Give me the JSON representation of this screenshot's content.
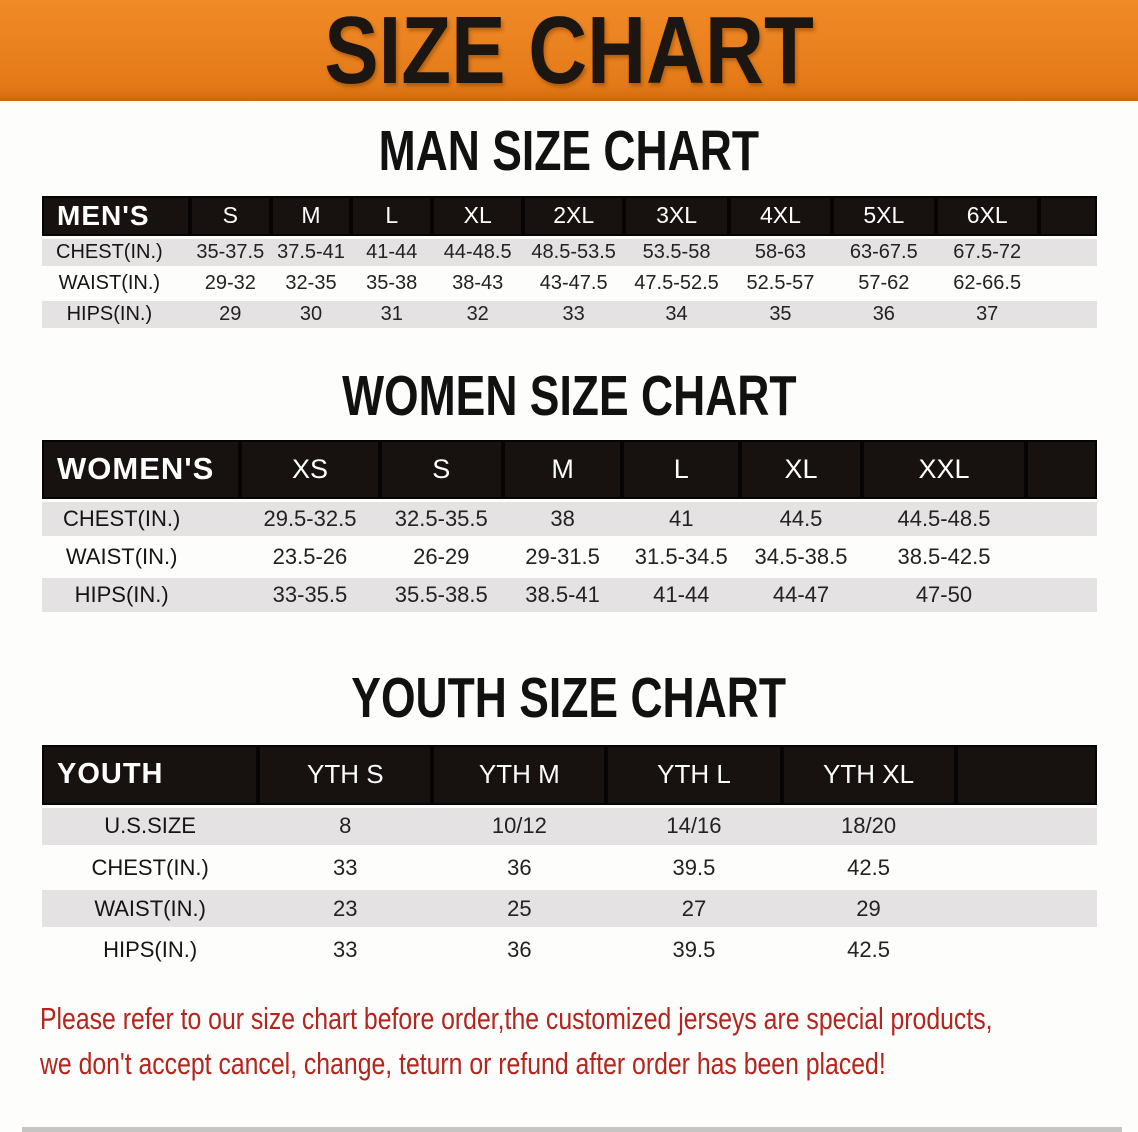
{
  "banner": {
    "title": "SIZE CHART"
  },
  "sections": [
    {
      "heading": "MAN SIZE CHART",
      "table": {
        "label": "MEN'S",
        "columns": [
          "S",
          "M",
          "L",
          "XL",
          "2XL",
          "3XL",
          "4XL",
          "5XL",
          "6XL"
        ],
        "rows": [
          {
            "label": "CHEST(IN.)",
            "values": [
              "35-37.5",
              "37.5-41",
              "41-44",
              "44-48.5",
              "48.5-53.5",
              "53.5-58",
              "58-63",
              "63-67.5",
              "67.5-72"
            ]
          },
          {
            "label": "WAIST(IN.)",
            "values": [
              "29-32",
              "32-35",
              "35-38",
              "38-43",
              "43-47.5",
              "47.5-52.5",
              "52.5-57",
              "57-62",
              "62-66.5"
            ]
          },
          {
            "label": "HIPS(IN.)",
            "values": [
              "29",
              "30",
              "31",
              "32",
              "33",
              "34",
              "35",
              "36",
              "37"
            ]
          }
        ]
      }
    },
    {
      "heading": "WOMEN SIZE CHART",
      "table": {
        "label": "WOMEN'S",
        "columns": [
          "XS",
          "S",
          "M",
          "L",
          "XL",
          "XXL"
        ],
        "rows": [
          {
            "label": "CHEST(IN.)",
            "values": [
              "29.5-32.5",
              "32.5-35.5",
              "38",
              "41",
              "44.5",
              "44.5-48.5"
            ]
          },
          {
            "label": "WAIST(IN.)",
            "values": [
              "23.5-26",
              "26-29",
              "29-31.5",
              "31.5-34.5",
              "34.5-38.5",
              "38.5-42.5"
            ]
          },
          {
            "label": "HIPS(IN.)",
            "values": [
              "33-35.5",
              "35.5-38.5",
              "38.5-41",
              "41-44",
              "44-47",
              "47-50"
            ]
          }
        ]
      }
    },
    {
      "heading": "YOUTH SIZE CHART",
      "table": {
        "label": "YOUTH",
        "columns": [
          "YTH S",
          "YTH M",
          "YTH L",
          "YTH XL"
        ],
        "rows": [
          {
            "label": "U.S.SIZE",
            "values": [
              "8",
              "10/12",
              "14/16",
              "18/20"
            ]
          },
          {
            "label": "CHEST(IN.)",
            "values": [
              "33",
              "36",
              "39.5",
              "42.5"
            ]
          },
          {
            "label": "WAIST(IN.)",
            "values": [
              "23",
              "25",
              "27",
              "29"
            ]
          },
          {
            "label": "HIPS(IN.)",
            "values": [
              "33",
              "36",
              "39.5",
              "42.5"
            ]
          }
        ]
      }
    }
  ],
  "footer": {
    "line1": "Please refer to our size chart before order,the customized jerseys are special products,",
    "line2": "we don't accept cancel, change, teturn or refund after order has been placed!"
  },
  "colors": {
    "banner_bg": "#e8801e",
    "banner_text": "#1c1613",
    "table_header_bg": "#17110f",
    "table_header_text": "#ffffff",
    "shaded_row_bg": "#e4e2e2",
    "disclaimer_text": "#b3251d"
  }
}
